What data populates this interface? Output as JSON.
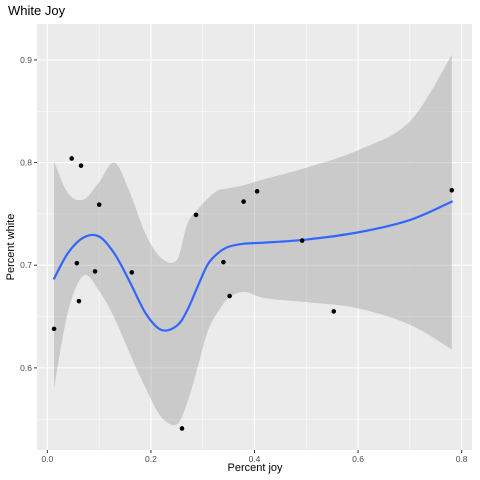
{
  "chart_data": {
    "type": "scatter",
    "title": "White Joy",
    "xlabel": "Percent joy",
    "ylabel": "Percent white",
    "xlim": [
      -0.02,
      0.82
    ],
    "ylim": [
      0.52,
      0.935
    ],
    "x_ticks": [
      0.0,
      0.2,
      0.4,
      0.6,
      0.8
    ],
    "x_tick_labels": [
      "0.0",
      "0.2",
      "0.4",
      "0.6",
      "0.8"
    ],
    "y_ticks": [
      0.6,
      0.7,
      0.8,
      0.9
    ],
    "y_tick_labels": [
      "0.6",
      "0.7",
      "0.8",
      "0.9"
    ],
    "grid": true,
    "legend": "none",
    "colors": {
      "panel": "#ebebeb",
      "grid": "#ffffff",
      "points": "#000000",
      "smooth_line": "#3366ff",
      "confidence_band": "#999999"
    },
    "points": [
      {
        "x": 0.013,
        "y": 0.638
      },
      {
        "x": 0.047,
        "y": 0.804
      },
      {
        "x": 0.057,
        "y": 0.702
      },
      {
        "x": 0.061,
        "y": 0.665
      },
      {
        "x": 0.065,
        "y": 0.797
      },
      {
        "x": 0.092,
        "y": 0.694
      },
      {
        "x": 0.1,
        "y": 0.759
      },
      {
        "x": 0.163,
        "y": 0.693
      },
      {
        "x": 0.26,
        "y": 0.541
      },
      {
        "x": 0.287,
        "y": 0.749
      },
      {
        "x": 0.34,
        "y": 0.703
      },
      {
        "x": 0.352,
        "y": 0.67
      },
      {
        "x": 0.379,
        "y": 0.762
      },
      {
        "x": 0.405,
        "y": 0.772
      },
      {
        "x": 0.492,
        "y": 0.724
      },
      {
        "x": 0.553,
        "y": 0.655
      },
      {
        "x": 0.781,
        "y": 0.773
      }
    ],
    "smooth": {
      "method": "loess",
      "x": [
        0.013,
        0.04,
        0.07,
        0.1,
        0.13,
        0.16,
        0.19,
        0.22,
        0.25,
        0.27,
        0.29,
        0.31,
        0.33,
        0.35,
        0.38,
        0.42,
        0.5,
        0.6,
        0.7,
        0.781
      ],
      "y": [
        0.687,
        0.712,
        0.727,
        0.728,
        0.711,
        0.683,
        0.653,
        0.637,
        0.641,
        0.656,
        0.679,
        0.701,
        0.712,
        0.718,
        0.721,
        0.722,
        0.725,
        0.732,
        0.744,
        0.762
      ],
      "lower": [
        0.58,
        0.655,
        0.69,
        0.675,
        0.648,
        0.613,
        0.58,
        0.552,
        0.545,
        0.566,
        0.6,
        0.636,
        0.655,
        0.668,
        0.674,
        0.668,
        0.664,
        0.658,
        0.642,
        0.618
      ],
      "upper": [
        0.801,
        0.77,
        0.764,
        0.781,
        0.8,
        0.77,
        0.73,
        0.707,
        0.705,
        0.74,
        0.754,
        0.765,
        0.773,
        0.775,
        0.778,
        0.784,
        0.795,
        0.812,
        0.84,
        0.905
      ]
    }
  }
}
